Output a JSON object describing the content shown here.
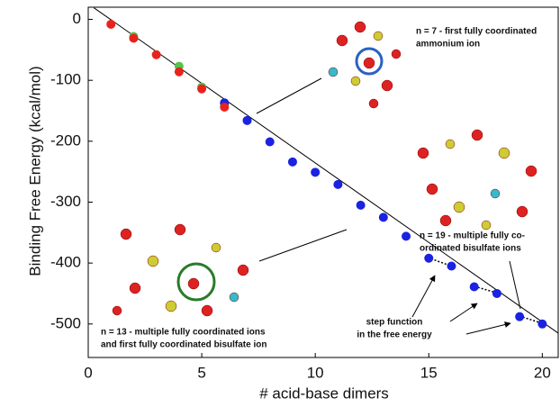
{
  "chart_data": {
    "type": "scatter",
    "x_label": "# acid-base dimers",
    "y_label": "Binding Free Energy (kcal/mol)",
    "xlim": [
      0,
      20.7
    ],
    "ylim": [
      -555,
      20
    ],
    "xticks": [
      0,
      5,
      10,
      15,
      20
    ],
    "yticks": [
      0,
      -100,
      -200,
      -300,
      -400,
      -500
    ],
    "series": [
      {
        "color": "#54c44a",
        "x": [
          2,
          4,
          5,
          6
        ],
        "values": [
          -28,
          -77,
          -111,
          -139
        ]
      },
      {
        "color": "#1a23e0",
        "x": [
          6,
          7,
          8,
          9,
          10,
          11,
          12,
          13,
          14,
          15,
          16,
          17,
          18,
          19,
          20
        ],
        "values": [
          -137,
          -166,
          -201,
          -234,
          -251,
          -271,
          -305,
          -325,
          -356,
          -392,
          -405,
          -439,
          -450,
          -488,
          -500
        ]
      },
      {
        "color": "#e8231b",
        "x": [
          1,
          2,
          3,
          4,
          5,
          6
        ],
        "values": [
          -8,
          -31,
          -58,
          -86,
          -114,
          -144
        ]
      }
    ],
    "fit_line": {
      "color": "#000000",
      "x": [
        0.25,
        20.7
      ],
      "values": [
        19,
        -515
      ]
    },
    "annotations": [
      [
        "n = 7 - first fully coordinated",
        "ammonium ion"
      ],
      [
        "n = 19 - multiple fully co-",
        "ordinated bisulfate ions"
      ],
      [
        "n = 13 - multiple fully coordinated ions",
        "and first fully coordinated bisulfate ion"
      ],
      [
        "step function",
        "in the free energy"
      ]
    ]
  }
}
